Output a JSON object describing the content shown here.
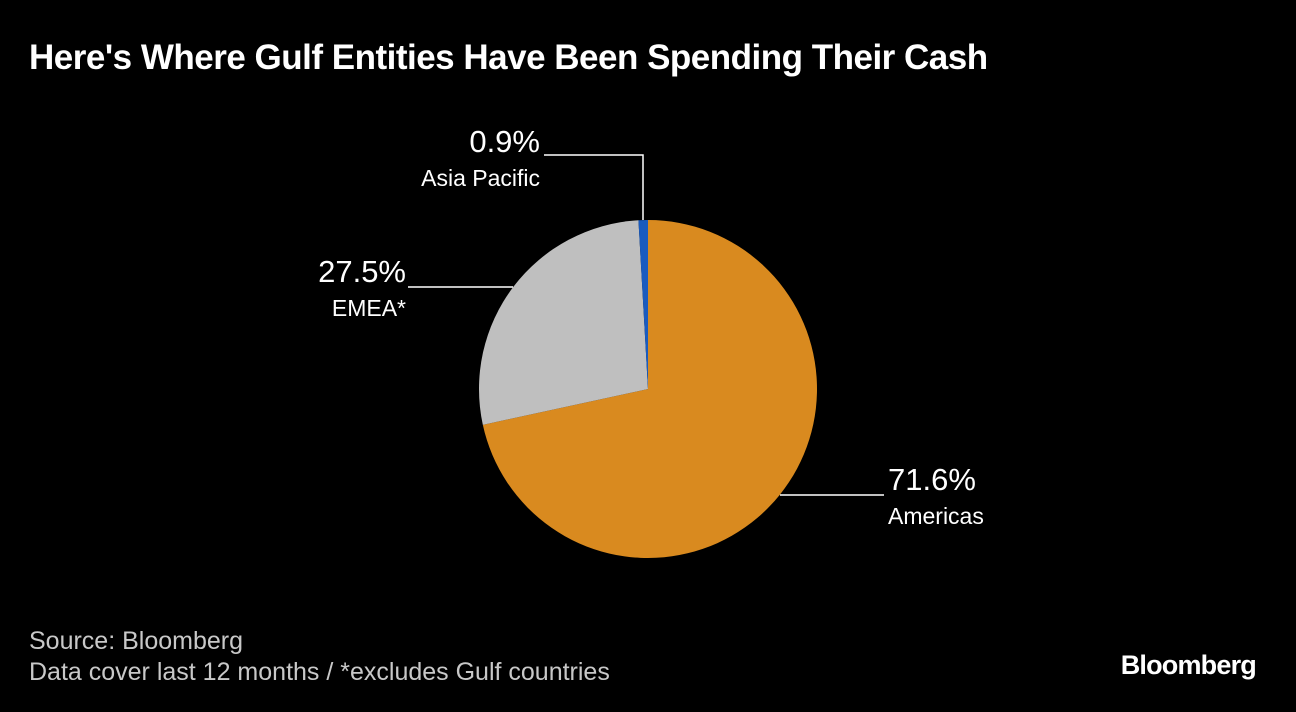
{
  "title": "Here's Where Gulf Entities Have Been Spending Their Cash",
  "footer": {
    "source": "Source: Bloomberg",
    "note": "Data cover last 12 months / *excludes Gulf countries"
  },
  "brand": "Bloomberg",
  "colors": {
    "background": "#000000",
    "leader": "#ffffff",
    "text": "#ffffff",
    "footer_text": "#c8c8c8"
  },
  "chart_data": {
    "type": "pie",
    "title": "Here's Where Gulf Entities Have Been Spending Their Cash",
    "start": "12 o'clock",
    "direction": "clockwise",
    "slices": [
      {
        "label": "Americas",
        "value": 71.6,
        "value_label": "71.6%",
        "color": "#d98a1f",
        "label_side": "right"
      },
      {
        "label": "EMEA*",
        "value": 27.5,
        "value_label": "27.5%",
        "color": "#bfbfbf",
        "label_side": "left"
      },
      {
        "label": "Asia Pacific",
        "value": 0.9,
        "value_label": "0.9%",
        "color": "#1a5bbf",
        "label_side": "top-left"
      }
    ]
  }
}
